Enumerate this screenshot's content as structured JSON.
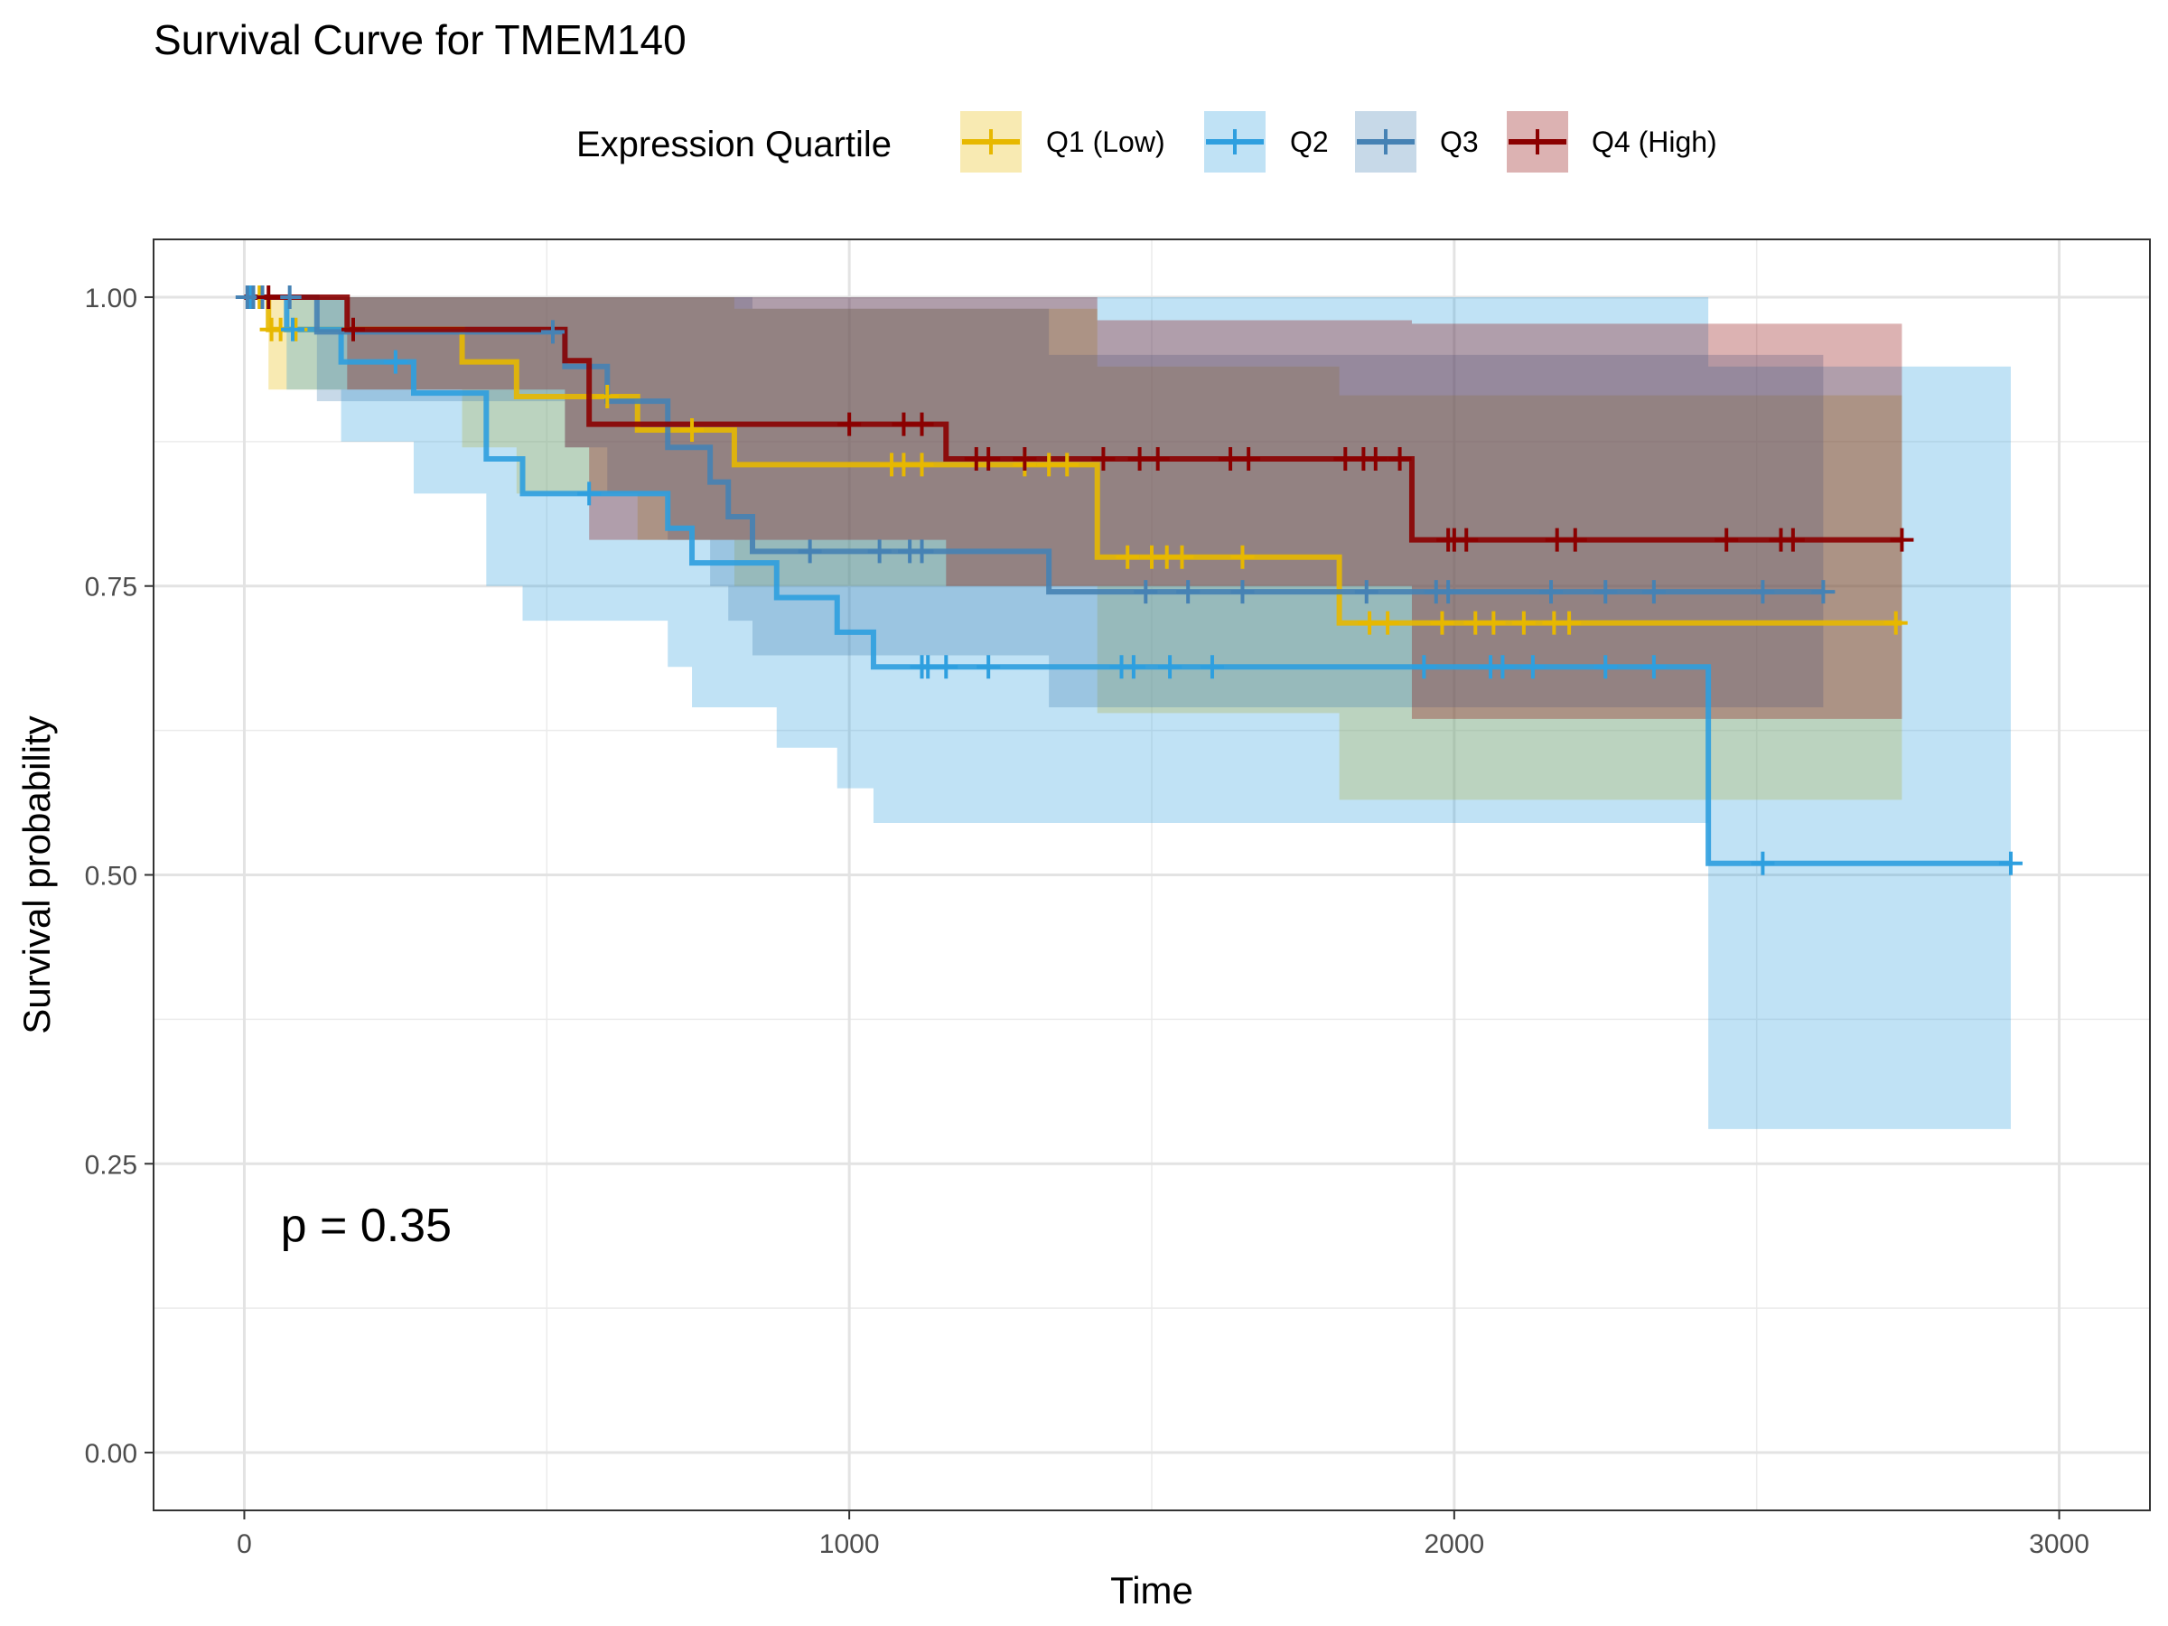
{
  "chart_data": {
    "type": "line",
    "title": "Survival Curve for TMEM140",
    "xlabel": "Time",
    "ylabel": "Survival probability",
    "xlim": [
      -150,
      3150
    ],
    "ylim": [
      -0.05,
      1.05
    ],
    "x_ticks": [
      0,
      1000,
      2000,
      3000
    ],
    "x_tick_labels": [
      "0",
      "1000",
      "2000",
      "3000"
    ],
    "y_ticks": [
      0,
      0.25,
      0.5,
      0.75,
      1.0
    ],
    "y_tick_labels": [
      "0.00",
      "0.25",
      "0.50",
      "0.75",
      "1.00"
    ],
    "grid": true,
    "legend": {
      "title": "Expression Quartile",
      "position": "top"
    },
    "annotation": "p = 0.35",
    "annotation_pos": {
      "x": 60,
      "y": 0.197
    },
    "series": [
      {
        "name": "Q1 (Low)",
        "color": "#E7B800",
        "steps": [
          [
            0,
            1.0
          ],
          [
            40,
            0.972
          ],
          [
            360,
            0.944
          ],
          [
            450,
            0.914
          ],
          [
            650,
            0.885
          ],
          [
            810,
            0.855
          ],
          [
            1410,
            0.775
          ],
          [
            1810,
            0.718
          ],
          [
            2740,
            0.718
          ]
        ],
        "lower": [
          [
            0,
            1.0
          ],
          [
            40,
            0.92
          ],
          [
            60,
            0.92
          ],
          [
            360,
            0.87
          ],
          [
            450,
            0.83
          ],
          [
            650,
            0.79
          ],
          [
            810,
            0.75
          ],
          [
            1410,
            0.64
          ],
          [
            1810,
            0.565
          ],
          [
            2740,
            0.565
          ]
        ],
        "upper": [
          [
            0,
            1.0
          ],
          [
            40,
            1.0
          ],
          [
            810,
            0.99
          ],
          [
            1410,
            0.94
          ],
          [
            1810,
            0.915
          ],
          [
            2740,
            0.915
          ]
        ],
        "censors": [
          [
            25,
            1.0
          ],
          [
            45,
            0.972
          ],
          [
            60,
            0.972
          ],
          [
            85,
            0.972
          ],
          [
            600,
            0.914
          ],
          [
            740,
            0.885
          ],
          [
            1070,
            0.855
          ],
          [
            1090,
            0.855
          ],
          [
            1120,
            0.855
          ],
          [
            1290,
            0.855
          ],
          [
            1330,
            0.855
          ],
          [
            1360,
            0.855
          ],
          [
            1460,
            0.775
          ],
          [
            1500,
            0.775
          ],
          [
            1525,
            0.775
          ],
          [
            1550,
            0.775
          ],
          [
            1650,
            0.775
          ],
          [
            1860,
            0.718
          ],
          [
            1890,
            0.718
          ],
          [
            1980,
            0.718
          ],
          [
            2035,
            0.718
          ],
          [
            2065,
            0.718
          ],
          [
            2115,
            0.718
          ],
          [
            2165,
            0.718
          ],
          [
            2190,
            0.718
          ],
          [
            2730,
            0.718
          ]
        ]
      },
      {
        "name": "Q2",
        "color": "#2E9FDF",
        "steps": [
          [
            0,
            1.0
          ],
          [
            70,
            0.972
          ],
          [
            160,
            0.944
          ],
          [
            280,
            0.917
          ],
          [
            400,
            0.86
          ],
          [
            460,
            0.83
          ],
          [
            700,
            0.8
          ],
          [
            740,
            0.77
          ],
          [
            880,
            0.74
          ],
          [
            980,
            0.71
          ],
          [
            1040,
            0.68
          ],
          [
            2420,
            0.51
          ],
          [
            2920,
            0.51
          ]
        ],
        "lower": [
          [
            0,
            1.0
          ],
          [
            70,
            0.92
          ],
          [
            160,
            0.875
          ],
          [
            280,
            0.83
          ],
          [
            400,
            0.75
          ],
          [
            460,
            0.72
          ],
          [
            700,
            0.68
          ],
          [
            740,
            0.645
          ],
          [
            880,
            0.61
          ],
          [
            980,
            0.575
          ],
          [
            1040,
            0.545
          ],
          [
            2420,
            0.28
          ],
          [
            2920,
            0.28
          ]
        ],
        "upper": [
          [
            0,
            1.0
          ],
          [
            2420,
            0.94
          ],
          [
            2920,
            0.94
          ]
        ],
        "censors": [
          [
            10,
            1.0
          ],
          [
            80,
            0.972
          ],
          [
            250,
            0.944
          ],
          [
            570,
            0.83
          ],
          [
            1120,
            0.68
          ],
          [
            1130,
            0.68
          ],
          [
            1160,
            0.68
          ],
          [
            1230,
            0.68
          ],
          [
            1450,
            0.68
          ],
          [
            1470,
            0.68
          ],
          [
            1530,
            0.68
          ],
          [
            1600,
            0.68
          ],
          [
            1950,
            0.68
          ],
          [
            2060,
            0.68
          ],
          [
            2080,
            0.68
          ],
          [
            2130,
            0.68
          ],
          [
            2250,
            0.68
          ],
          [
            2330,
            0.68
          ],
          [
            2510,
            0.51
          ],
          [
            2920,
            0.51
          ]
        ]
      },
      {
        "name": "Q3",
        "color": "#4682B4",
        "steps": [
          [
            0,
            1.0
          ],
          [
            120,
            0.97
          ],
          [
            530,
            0.94
          ],
          [
            600,
            0.91
          ],
          [
            700,
            0.87
          ],
          [
            770,
            0.84
          ],
          [
            800,
            0.81
          ],
          [
            840,
            0.78
          ],
          [
            1330,
            0.745
          ],
          [
            2610,
            0.745
          ]
        ],
        "lower": [
          [
            0,
            1.0
          ],
          [
            120,
            0.91
          ],
          [
            530,
            0.87
          ],
          [
            600,
            0.83
          ],
          [
            700,
            0.79
          ],
          [
            770,
            0.75
          ],
          [
            800,
            0.72
          ],
          [
            840,
            0.69
          ],
          [
            1330,
            0.645
          ],
          [
            2610,
            0.605
          ]
        ],
        "upper": [
          [
            0,
            1.0
          ],
          [
            840,
            0.99
          ],
          [
            1330,
            0.95
          ],
          [
            2610,
            0.915
          ]
        ],
        "censors": [
          [
            5,
            1.0
          ],
          [
            15,
            1.0
          ],
          [
            30,
            1.0
          ],
          [
            75,
            1.0
          ],
          [
            510,
            0.97
          ],
          [
            935,
            0.78
          ],
          [
            1050,
            0.78
          ],
          [
            1100,
            0.78
          ],
          [
            1120,
            0.78
          ],
          [
            1490,
            0.745
          ],
          [
            1560,
            0.745
          ],
          [
            1650,
            0.745
          ],
          [
            1855,
            0.745
          ],
          [
            1970,
            0.745
          ],
          [
            1990,
            0.745
          ],
          [
            2160,
            0.745
          ],
          [
            2250,
            0.745
          ],
          [
            2330,
            0.745
          ],
          [
            2510,
            0.745
          ],
          [
            2610,
            0.745
          ]
        ]
      },
      {
        "name": "Q4 (High)",
        "color": "#8B0000",
        "steps": [
          [
            0,
            1.0
          ],
          [
            170,
            0.972
          ],
          [
            530,
            0.945
          ],
          [
            570,
            0.89
          ],
          [
            1160,
            0.86
          ],
          [
            1930,
            0.79
          ],
          [
            2740,
            0.79
          ]
        ],
        "lower": [
          [
            0,
            1.0
          ],
          [
            170,
            0.92
          ],
          [
            530,
            0.87
          ],
          [
            570,
            0.79
          ],
          [
            1160,
            0.75
          ],
          [
            1930,
            0.635
          ],
          [
            2740,
            0.635
          ]
        ],
        "upper": [
          [
            0,
            1.0
          ],
          [
            1410,
            0.98
          ],
          [
            1930,
            0.977
          ],
          [
            2740,
            0.977
          ]
        ],
        "censors": [
          [
            40,
            1.0
          ],
          [
            180,
            0.972
          ],
          [
            1000,
            0.89
          ],
          [
            1090,
            0.89
          ],
          [
            1120,
            0.89
          ],
          [
            1210,
            0.86
          ],
          [
            1230,
            0.86
          ],
          [
            1290,
            0.86
          ],
          [
            1420,
            0.86
          ],
          [
            1480,
            0.86
          ],
          [
            1510,
            0.86
          ],
          [
            1630,
            0.86
          ],
          [
            1660,
            0.86
          ],
          [
            1820,
            0.86
          ],
          [
            1850,
            0.86
          ],
          [
            1870,
            0.86
          ],
          [
            1910,
            0.86
          ],
          [
            1990,
            0.79
          ],
          [
            2000,
            0.79
          ],
          [
            2020,
            0.79
          ],
          [
            2170,
            0.79
          ],
          [
            2200,
            0.79
          ],
          [
            2450,
            0.79
          ],
          [
            2540,
            0.79
          ],
          [
            2560,
            0.79
          ],
          [
            2740,
            0.79
          ]
        ]
      }
    ]
  }
}
